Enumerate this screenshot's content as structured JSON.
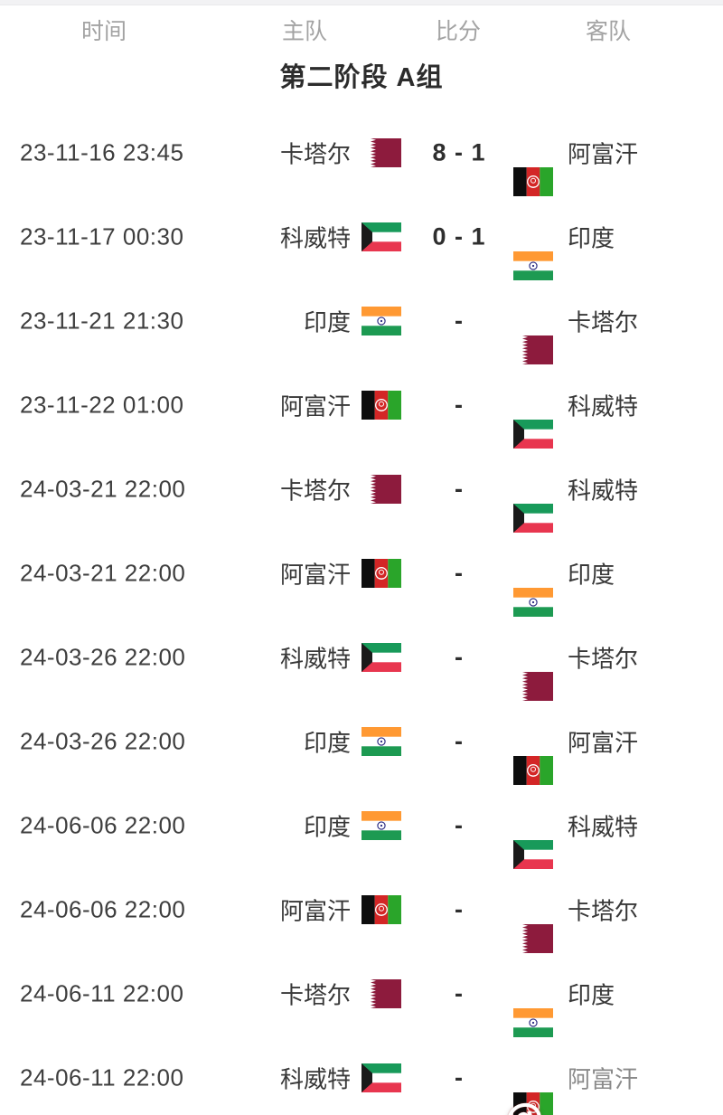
{
  "header": {
    "time": "时间",
    "home": "主队",
    "score": "比分",
    "away": "客队"
  },
  "section_title": "第二阶段 A组",
  "teams": {
    "qatar": "卡塔尔",
    "afghanistan": "阿富汗",
    "kuwait": "科威特",
    "india": "印度"
  },
  "colors": {
    "qatar_maroon": "#8d1b3d",
    "kuwait_green": "#189a5a",
    "kuwait_red": "#e8364f",
    "kuwait_black": "#1a1a1a",
    "afghan_black": "#0d0d0d",
    "afghan_red": "#d32626",
    "afghan_green": "#2aa52a",
    "india_saffron": "#ff9933",
    "india_green": "#1d9a52",
    "india_navy": "#24247d",
    "text_dark": "#383838",
    "header_gray": "#a3a3a3"
  },
  "watermark": {
    "glyph": "@"
  },
  "matches": [
    {
      "time": "23-11-16 23:45",
      "home_team": "卡塔尔",
      "home_flag": "qatar",
      "score": "8 - 1",
      "away_team": "阿富汗",
      "away_flag": "afghanistan",
      "watermark": false
    },
    {
      "time": "23-11-17 00:30",
      "home_team": "科威特",
      "home_flag": "kuwait",
      "score": "0 - 1",
      "away_team": "印度",
      "away_flag": "india",
      "watermark": false
    },
    {
      "time": "23-11-21 21:30",
      "home_team": "印度",
      "home_flag": "india",
      "score": "-",
      "away_team": "卡塔尔",
      "away_flag": "qatar",
      "watermark": false
    },
    {
      "time": "23-11-22 01:00",
      "home_team": "阿富汗",
      "home_flag": "afghanistan",
      "score": "-",
      "away_team": "科威特",
      "away_flag": "kuwait",
      "watermark": false
    },
    {
      "time": "24-03-21 22:00",
      "home_team": "卡塔尔",
      "home_flag": "qatar",
      "score": "-",
      "away_team": "科威特",
      "away_flag": "kuwait",
      "watermark": false
    },
    {
      "time": "24-03-21 22:00",
      "home_team": "阿富汗",
      "home_flag": "afghanistan",
      "score": "-",
      "away_team": "印度",
      "away_flag": "india",
      "watermark": false
    },
    {
      "time": "24-03-26 22:00",
      "home_team": "科威特",
      "home_flag": "kuwait",
      "score": "-",
      "away_team": "卡塔尔",
      "away_flag": "qatar",
      "watermark": false
    },
    {
      "time": "24-03-26 22:00",
      "home_team": "印度",
      "home_flag": "india",
      "score": "-",
      "away_team": "阿富汗",
      "away_flag": "afghanistan",
      "watermark": false
    },
    {
      "time": "24-06-06 22:00",
      "home_team": "印度",
      "home_flag": "india",
      "score": "-",
      "away_team": "科威特",
      "away_flag": "kuwait",
      "watermark": false
    },
    {
      "time": "24-06-06 22:00",
      "home_team": "阿富汗",
      "home_flag": "afghanistan",
      "score": "-",
      "away_team": "卡塔尔",
      "away_flag": "qatar",
      "watermark": false
    },
    {
      "time": "24-06-11 22:00",
      "home_team": "卡塔尔",
      "home_flag": "qatar",
      "score": "-",
      "away_team": "印度",
      "away_flag": "india",
      "watermark": false
    },
    {
      "time": "24-06-11 22:00",
      "home_team": "科威特",
      "home_flag": "kuwait",
      "score": "-",
      "away_team": "阿富汗",
      "away_flag": "afghanistan",
      "watermark": true
    }
  ]
}
